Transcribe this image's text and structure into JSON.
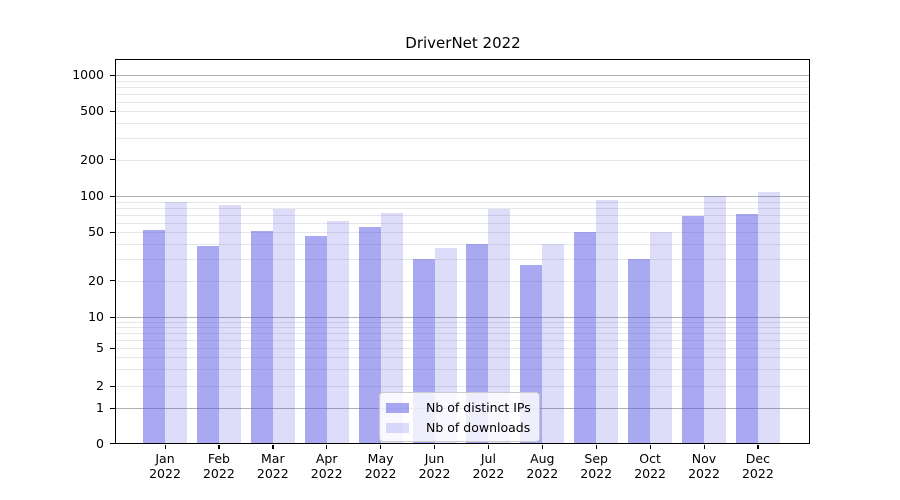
{
  "chart_data": {
    "type": "bar",
    "title": "DriverNet 2022",
    "categories": [
      "Jan 2022",
      "Feb 2022",
      "Mar 2022",
      "Apr 2022",
      "May 2022",
      "Jun 2022",
      "Jul 2022",
      "Aug 2022",
      "Sep 2022",
      "Oct 2022",
      "Nov 2022",
      "Dec 2022"
    ],
    "series": [
      {
        "name": "Nb of distinct IPs",
        "color": "rgba(84,84,229,0.5)",
        "values": [
          52,
          39,
          51,
          47,
          55,
          30,
          40,
          27,
          50,
          30,
          69,
          71
        ]
      },
      {
        "name": "Nb of downloads",
        "color": "rgba(84,84,229,0.2)",
        "values": [
          89,
          84,
          78,
          62,
          73,
          37,
          78,
          40,
          92,
          50,
          101,
          107
        ]
      }
    ],
    "yscale": "symlog",
    "y_ticks": [
      0,
      1,
      2,
      5,
      10,
      20,
      50,
      100,
      200,
      500,
      1000
    ],
    "ylim": [
      0,
      1360
    ],
    "xlabel": "",
    "ylabel": "",
    "grid": {
      "enabled": true,
      "minor_color": "#e7e7e7",
      "major_color": "#b0b0b0"
    },
    "legend_position": "lower center",
    "axis_color": "#000000",
    "background_color": "#ffffff"
  }
}
